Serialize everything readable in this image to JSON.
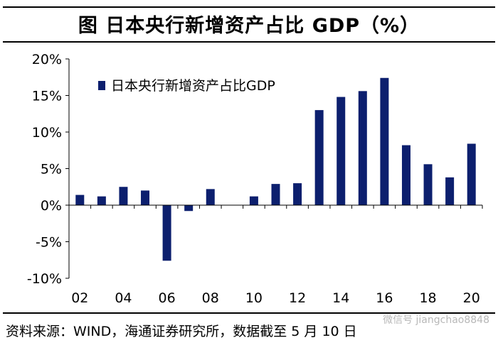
{
  "title": "图  日本央行新增资产占比 GDP（%）",
  "source": "资料来源：WIND，海通证券研究所，数据截至 5 月 10 日",
  "watermark": "微信号 jiangchao8848",
  "colors": {
    "bar": "#0c1f6e",
    "axis": "#000000"
  },
  "chart_data": {
    "type": "bar",
    "title": "日本央行新增资产占比 GDP（%）",
    "legend": [
      "日本央行新增资产占比GDP"
    ],
    "legend_position": "top-left",
    "xlabel": "",
    "ylabel": "",
    "ylim": [
      -10,
      20
    ],
    "yticks": [
      20,
      15,
      10,
      5,
      0,
      -5,
      -10
    ],
    "ytick_labels": [
      "20%",
      "15%",
      "10%",
      "5%",
      "0%",
      "-5%",
      "-10%"
    ],
    "x_years": [
      "02",
      "03",
      "04",
      "05",
      "06",
      "07",
      "08",
      "09",
      "10",
      "11",
      "12",
      "13",
      "14",
      "15",
      "16",
      "17",
      "18",
      "19",
      "20"
    ],
    "xtick_labels": [
      "02",
      "04",
      "06",
      "08",
      "10",
      "12",
      "14",
      "16",
      "18",
      "20"
    ],
    "series": [
      {
        "name": "日本央行新增资产占比GDP",
        "values": [
          1.4,
          1.2,
          2.5,
          2.0,
          -7.6,
          -0.8,
          2.2,
          0.0,
          1.2,
          2.9,
          3.0,
          13.0,
          14.8,
          15.6,
          17.4,
          8.2,
          5.6,
          3.8,
          8.4
        ]
      }
    ]
  }
}
